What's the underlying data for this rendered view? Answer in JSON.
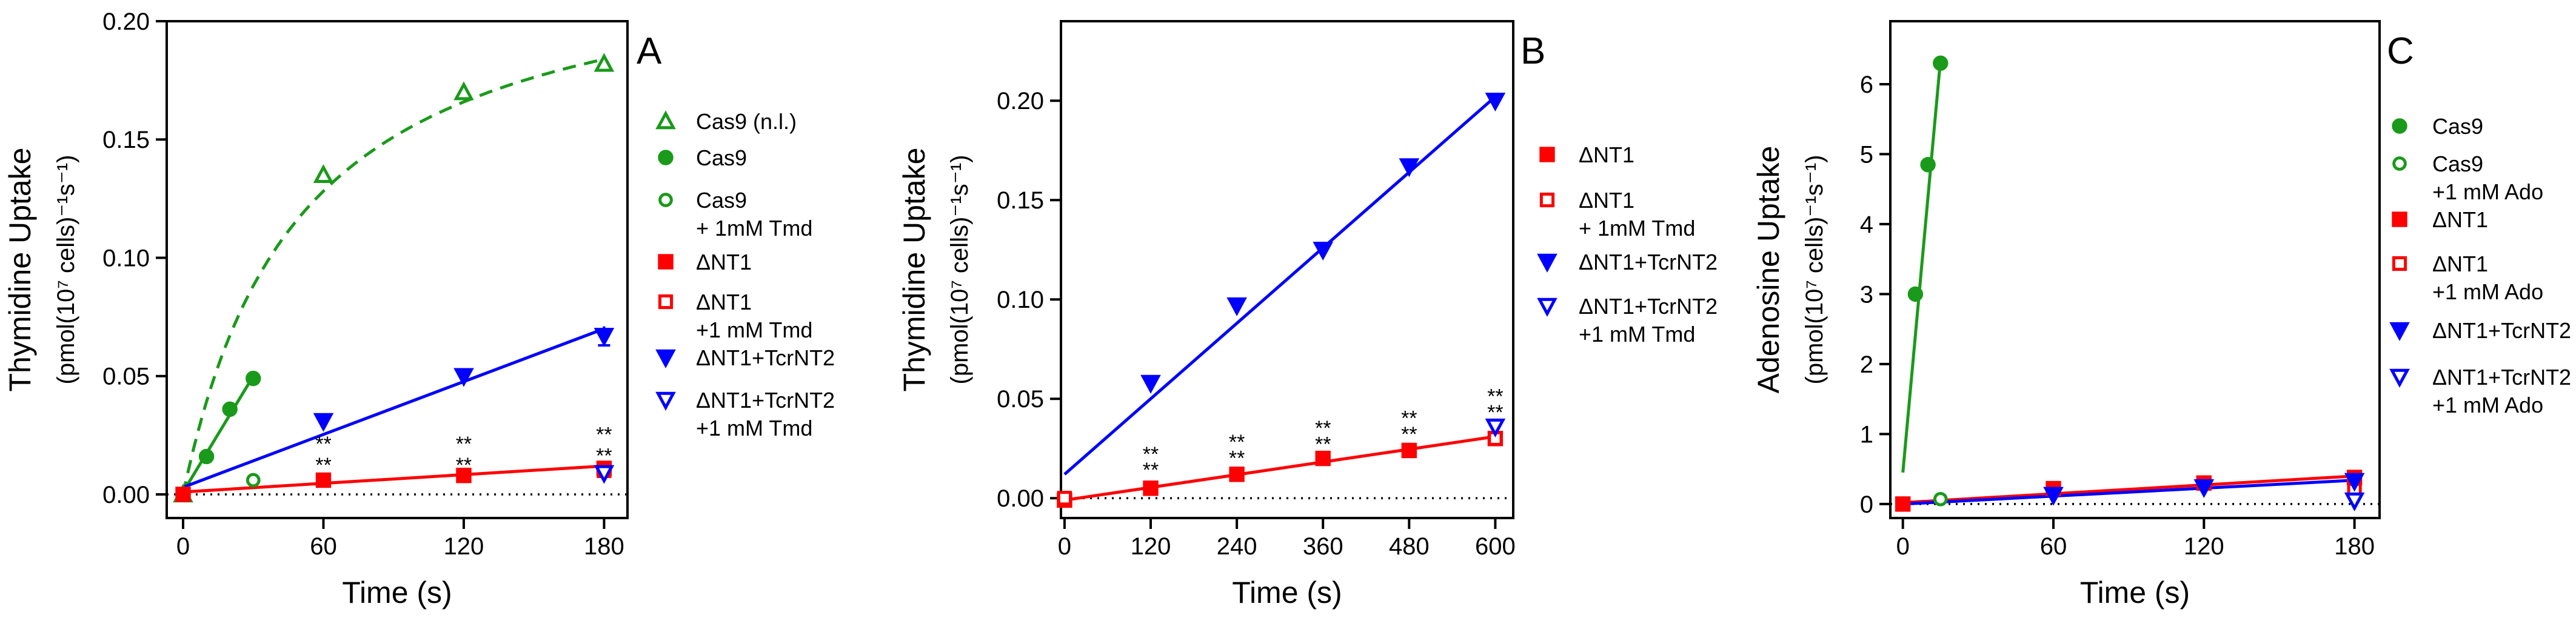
{
  "colors": {
    "green": "#1a9a1a",
    "red": "#ff0000",
    "blue": "#0000ff",
    "black": "#000000"
  },
  "chart_data": [
    {
      "type": "scatter",
      "panel": "A",
      "ylabel_line1": "Thymidine Uptake",
      "ylabel_line2": "(pmol(10⁷ cells)⁻¹s⁻¹)",
      "xlabel": "Time (s)",
      "xlim": [
        -7,
        190
      ],
      "ylim": [
        -0.01,
        0.2
      ],
      "xticks": [
        0,
        60,
        120,
        180
      ],
      "yticks": [
        0.0,
        0.05,
        0.1,
        0.15,
        0.2
      ],
      "ytick_labels": [
        "0.00",
        "0.05",
        "0.10",
        "0.15",
        "0.20"
      ],
      "baseline": 0,
      "series": [
        {
          "name": "Cas9 (n.l.)",
          "color": "green",
          "marker": "tri-up-open",
          "x": [
            0,
            60,
            120,
            180
          ],
          "y": [
            0.0,
            0.135,
            0.17,
            0.182
          ],
          "fit": "hyperbolic",
          "fit_params": {
            "vmax": 0.235,
            "k": 50
          },
          "fit_style": "dashed"
        },
        {
          "name": "Cas9",
          "color": "green",
          "marker": "circle",
          "x": [
            0,
            10,
            20,
            30
          ],
          "y": [
            0.0,
            0.016,
            0.036,
            0.049
          ],
          "fit": "line",
          "fit_x": [
            0,
            30
          ],
          "fit_y": [
            0.001,
            0.05
          ]
        },
        {
          "name": "Cas9\n+ 1mM Tmd",
          "color": "green",
          "marker": "circle-open",
          "x": [
            30
          ],
          "y": [
            0.006
          ]
        },
        {
          "name": "ΔNT1",
          "color": "red",
          "marker": "square",
          "x": [
            0,
            60,
            120,
            180
          ],
          "y": [
            0.0,
            0.006,
            0.008,
            0.011
          ],
          "fit": "line",
          "fit_x": [
            0,
            180
          ],
          "fit_y": [
            0.001,
            0.012
          ]
        },
        {
          "name": "ΔNT1\n+1 mM Tmd",
          "color": "red",
          "marker": "square-open",
          "x": [
            180
          ],
          "y": [
            0.01
          ]
        },
        {
          "name": "ΔNT1+TcrNT2",
          "color": "blue",
          "marker": "tri-down",
          "x": [
            60,
            120,
            180
          ],
          "y": [
            0.031,
            0.05,
            0.067
          ],
          "err": [
            0,
            0,
            0.004
          ],
          "fit": "line",
          "fit_x": [
            0,
            180
          ],
          "fit_y": [
            0.003,
            0.07
          ]
        },
        {
          "name": "ΔNT1+TcrNT2\n+1 mM Tmd",
          "color": "blue",
          "marker": "tri-down-open",
          "x": [
            180
          ],
          "y": [
            0.009
          ]
        }
      ],
      "annotations": [
        {
          "text": "**",
          "x": 60,
          "y": 0.022
        },
        {
          "text": "**",
          "x": 60,
          "y": 0.013
        },
        {
          "text": "**",
          "x": 120,
          "y": 0.022
        },
        {
          "text": "**",
          "x": 120,
          "y": 0.013
        },
        {
          "text": "**",
          "x": 180,
          "y": 0.026
        },
        {
          "text": "**",
          "x": 180,
          "y": 0.017
        }
      ],
      "legend_labels": [
        [
          "Cas9 (n.l.)"
        ],
        [
          "Cas9"
        ],
        [
          "Cas9",
          "+ 1mM Tmd"
        ],
        [
          "ΔNT1"
        ],
        [
          "ΔNT1",
          "+1 mM Tmd"
        ],
        [
          "ΔNT1+TcrNT2"
        ],
        [
          "ΔNT1+TcrNT2",
          "+1 mM Tmd"
        ]
      ]
    },
    {
      "type": "scatter",
      "panel": "B",
      "ylabel_line1": "Thymidine Uptake",
      "ylabel_line2": "(pmol(10⁷ cells)⁻¹s⁻¹)",
      "xlabel": "Time (s)",
      "xlim": [
        -5,
        625
      ],
      "ylim": [
        -0.01,
        0.24
      ],
      "xticks": [
        0,
        120,
        240,
        360,
        480,
        600
      ],
      "yticks": [
        0.0,
        0.05,
        0.1,
        0.15,
        0.2
      ],
      "ytick_labels": [
        "0.00",
        "0.05",
        "0.10",
        "0.15",
        "0.20"
      ],
      "baseline": 0,
      "series": [
        {
          "name": "ΔNT1",
          "color": "red",
          "marker": "square",
          "x": [
            0,
            120,
            240,
            360,
            480,
            600
          ],
          "y": [
            -0.001,
            0.005,
            0.012,
            0.02,
            0.024,
            0.03
          ],
          "fit": "line",
          "fit_x": [
            0,
            600
          ],
          "fit_y": [
            -0.001,
            0.031
          ]
        },
        {
          "name": "ΔNT1\n+ 1mM Tmd",
          "color": "red",
          "marker": "square-open",
          "x": [
            0,
            600
          ],
          "y": [
            0.0,
            0.03
          ]
        },
        {
          "name": "ΔNT1+TcrNT2",
          "color": "blue",
          "marker": "tri-down",
          "x": [
            120,
            240,
            360,
            480,
            600
          ],
          "y": [
            0.058,
            0.097,
            0.125,
            0.167,
            0.2
          ],
          "fit": "line",
          "fit_x": [
            0,
            600
          ],
          "fit_y": [
            0.012,
            0.202
          ]
        },
        {
          "name": "ΔNT1+TcrNT2\n+1 mM Tmd",
          "color": "blue",
          "marker": "tri-down-open",
          "x": [
            600
          ],
          "y": [
            0.036
          ]
        }
      ],
      "annotations": [
        {
          "text": "**",
          "x": 120,
          "y": 0.023
        },
        {
          "text": "**",
          "x": 120,
          "y": 0.015
        },
        {
          "text": "**",
          "x": 240,
          "y": 0.029
        },
        {
          "text": "**",
          "x": 240,
          "y": 0.021
        },
        {
          "text": "**",
          "x": 360,
          "y": 0.036
        },
        {
          "text": "**",
          "x": 360,
          "y": 0.028
        },
        {
          "text": "**",
          "x": 480,
          "y": 0.041
        },
        {
          "text": "**",
          "x": 480,
          "y": 0.033
        },
        {
          "text": "**",
          "x": 600,
          "y": 0.052
        },
        {
          "text": "**",
          "x": 600,
          "y": 0.044
        }
      ],
      "legend_labels": [
        [
          "ΔNT1"
        ],
        [
          "ΔNT1",
          "+ 1mM Tmd"
        ],
        [
          "ΔNT1+TcrNT2"
        ],
        [
          "ΔNT1+TcrNT2",
          "+1 mM Tmd"
        ]
      ]
    },
    {
      "type": "scatter",
      "panel": "C",
      "ylabel_line1": "Adenosine Uptake",
      "ylabel_line2": "(pmol(10⁷ cells)⁻¹s⁻¹)",
      "xlabel": "Time (s)",
      "xlim": [
        -5,
        190
      ],
      "ylim": [
        -0.2,
        6.9
      ],
      "xticks": [
        0,
        60,
        120,
        180
      ],
      "yticks": [
        0,
        1,
        2,
        3,
        4,
        5,
        6
      ],
      "ytick_labels": [
        "0",
        "1",
        "2",
        "3",
        "4",
        "5",
        "6"
      ],
      "baseline": 0,
      "series": [
        {
          "name": "Cas9",
          "color": "green",
          "marker": "circle",
          "x": [
            0,
            5,
            10,
            15
          ],
          "y": [
            0.0,
            3.0,
            4.85,
            6.3
          ],
          "fit": "line",
          "fit_x": [
            0,
            15
          ],
          "fit_y": [
            0.45,
            6.35
          ]
        },
        {
          "name": "Cas9\n+1 mM Ado",
          "color": "green",
          "marker": "circle-open",
          "x": [
            15
          ],
          "y": [
            0.07
          ]
        },
        {
          "name": "ΔNT1",
          "color": "red",
          "marker": "square",
          "x": [
            0,
            60,
            120,
            180
          ],
          "y": [
            0.0,
            0.22,
            0.3,
            0.38
          ],
          "fit": "line",
          "fit_x": [
            0,
            180
          ],
          "fit_y": [
            0.02,
            0.4
          ]
        },
        {
          "name": "ΔNT1\n+1 mM Ado",
          "color": "red",
          "marker": "square-open",
          "x": [
            180
          ],
          "y": [
            0.2
          ]
        },
        {
          "name": "ΔNT1+TcrNT2",
          "color": "blue",
          "marker": "tri-down",
          "x": [
            60,
            120,
            180
          ],
          "y": [
            0.13,
            0.24,
            0.33
          ],
          "fit": "line",
          "fit_x": [
            0,
            180
          ],
          "fit_y": [
            0.0,
            0.34
          ]
        },
        {
          "name": "ΔNT1+TcrNT2\n+1 mM Ado",
          "color": "blue",
          "marker": "tri-down-open",
          "x": [
            180
          ],
          "y": [
            0.05
          ]
        }
      ],
      "annotations": [],
      "legend_labels": [
        [
          "Cas9"
        ],
        [
          "Cas9",
          "+1 mM Ado"
        ],
        [
          "ΔNT1"
        ],
        [
          "ΔNT1",
          "+1 mM Ado"
        ],
        [
          "ΔNT1+TcrNT2"
        ],
        [
          "ΔNT1+TcrNT2",
          "+1 mM Ado"
        ]
      ]
    }
  ]
}
